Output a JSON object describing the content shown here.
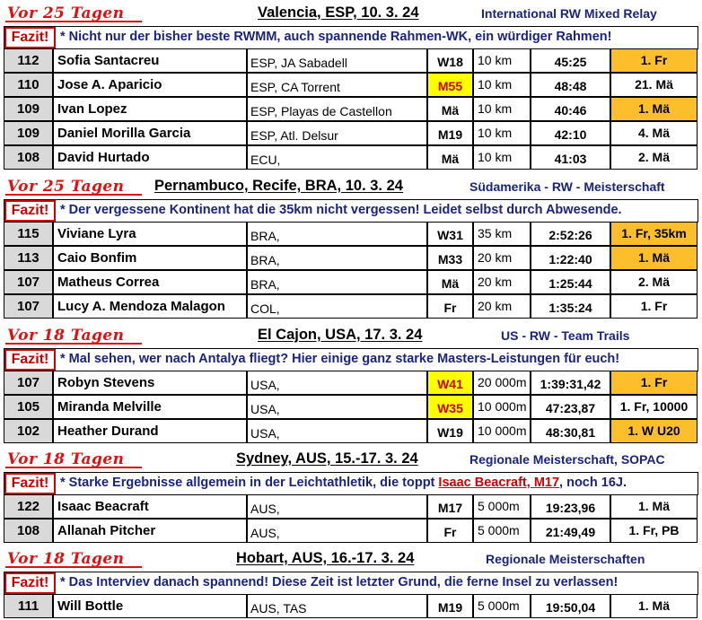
{
  "sections": [
    {
      "vor": "Vor 25 Tagen",
      "event": "Valencia, ESP, 10. 3. 24",
      "category": "International RW Mixed Relay",
      "fazit_label": "Fazit!",
      "fazit": [
        {
          "t": "* Nicht nur der bisher beste RWMM, auch spannende Rahmen-WK, ein würdiger Rahmen!",
          "hl": false
        }
      ],
      "rows": [
        {
          "score": "112",
          "name": "Sofia Santacreu",
          "club": "ESP, JA Sabadell",
          "cls": "W18",
          "cls_hl": false,
          "dist": "10 km",
          "time": "45:25",
          "rank": "1. Fr",
          "rank_hl": true
        },
        {
          "score": "110",
          "name": "Jose A. Aparicio",
          "club": "ESP, CA Torrent",
          "cls": "M55",
          "cls_hl": true,
          "dist": "10 km",
          "time": "48:48",
          "rank": "21. Mä",
          "rank_hl": false
        },
        {
          "score": "109",
          "name": "Ivan Lopez",
          "club": "ESP, Playas de Castellon",
          "cls": "Mä",
          "cls_hl": false,
          "dist": "10 km",
          "time": "40:46",
          "rank": "1. Mä",
          "rank_hl": true
        },
        {
          "score": "109",
          "name": "Daniel Morilla Garcia",
          "club": "ESP, Atl. Delsur",
          "cls": "M19",
          "cls_hl": false,
          "dist": "10 km",
          "time": "42:10",
          "rank": "4. Mä",
          "rank_hl": false
        },
        {
          "score": "108",
          "name": "David Hurtado",
          "club": "ECU,",
          "cls": "Mä",
          "cls_hl": false,
          "dist": "10 km",
          "time": "41:03",
          "rank": "2. Mä",
          "rank_hl": false
        }
      ]
    },
    {
      "vor": "Vor 25 Tagen",
      "event": "Pernambuco, Recife, BRA, 10. 3. 24",
      "category": "Südamerika - RW - Meisterschaft",
      "fazit_label": "Fazit!",
      "fazit": [
        {
          "t": "* Der vergessene Kontinent hat die 35km nicht vergessen! Leidet selbst durch Abwesende.",
          "hl": false
        }
      ],
      "rows": [
        {
          "score": "115",
          "name": "Viviane Lyra",
          "club": "BRA,",
          "cls": "W31",
          "cls_hl": false,
          "dist": "35 km",
          "time": "2:52:26",
          "rank": "1. Fr, 35km",
          "rank_hl": true
        },
        {
          "score": "113",
          "name": "Caio Bonfim",
          "club": "BRA,",
          "cls": "M33",
          "cls_hl": false,
          "dist": "20 km",
          "time": "1:22:40",
          "rank": "1. Mä",
          "rank_hl": true
        },
        {
          "score": "107",
          "name": "Matheus Correa",
          "club": "BRA,",
          "cls": "Mä",
          "cls_hl": false,
          "dist": "20 km",
          "time": "1:25:44",
          "rank": "2. Mä",
          "rank_hl": false
        },
        {
          "score": "107",
          "name": "Lucy A. Mendoza Malagon",
          "club": "COL,",
          "cls": "Fr",
          "cls_hl": false,
          "dist": "20 km",
          "time": "1:35:24",
          "rank": "1. Fr",
          "rank_hl": false
        }
      ]
    },
    {
      "vor": "Vor 18 Tagen",
      "event": "El Cajon, USA, 17. 3. 24",
      "category": "US - RW - Team Trails",
      "fazit_label": "Fazit!",
      "fazit": [
        {
          "t": "* Mal sehen, wer nach Antalya fliegt? Hier einige ganz starke Masters-Leistungen für euch!",
          "hl": false
        }
      ],
      "rows": [
        {
          "score": "107",
          "name": "Robyn Stevens",
          "club": "USA,",
          "cls": "W41",
          "cls_hl": true,
          "dist": "20 000m",
          "time": "1:39:31,42",
          "rank": "1. Fr",
          "rank_hl": true
        },
        {
          "score": "105",
          "name": "Miranda Melville",
          "club": "USA,",
          "cls": "W35",
          "cls_hl": true,
          "dist": "10 000m",
          "time": "47:23,87",
          "rank": "1. Fr, 10000",
          "rank_hl": false
        },
        {
          "score": "102",
          "name": "Heather Durand",
          "club": "USA,",
          "cls": "W19",
          "cls_hl": false,
          "dist": "10 000m",
          "time": "48:30,81",
          "rank": "1. W U20",
          "rank_hl": true
        }
      ]
    },
    {
      "vor": "Vor 18 Tagen",
      "event": "Sydney, AUS, 15.-17. 3. 24",
      "category": "Regionale Meisterschaft, SOPAC",
      "fazit_label": "Fazit!",
      "fazit": [
        {
          "t": "* Starke Ergebnisse allgemein in der Leichtathletik, die toppt ",
          "hl": false
        },
        {
          "t": "Isaac Beacraft, M17",
          "hl": true
        },
        {
          "t": ", noch 16J.",
          "hl": false
        }
      ],
      "rows": [
        {
          "score": "122",
          "name": "Isaac Beacraft",
          "club": "AUS,",
          "cls": "M17",
          "cls_hl": false,
          "dist": "5 000m",
          "time": "19:23,96",
          "rank": "1. Mä",
          "rank_hl": false
        },
        {
          "score": "108",
          "name": "Allanah Pitcher",
          "club": "AUS,",
          "cls": "Fr",
          "cls_hl": false,
          "dist": "5 000m",
          "time": "21:49,49",
          "rank": "1. Fr, PB",
          "rank_hl": false
        }
      ]
    },
    {
      "vor": "Vor 18 Tagen",
      "event": "Hobart, AUS, 16.-17. 3. 24",
      "category": "Regionale Meisterschaften",
      "fazit_label": "Fazit!",
      "fazit": [
        {
          "t": "* Das Interviev danach spannend! Diese Zeit ist letzter Grund, die ferne Insel zu verlassen!",
          "hl": false
        }
      ],
      "rows": [
        {
          "score": "111",
          "name": "Will Bottle",
          "club": "AUS, TAS",
          "cls": "M19",
          "cls_hl": false,
          "dist": "5 000m",
          "time": "19:50,04",
          "rank": "1. Mä",
          "rank_hl": false
        }
      ]
    }
  ]
}
